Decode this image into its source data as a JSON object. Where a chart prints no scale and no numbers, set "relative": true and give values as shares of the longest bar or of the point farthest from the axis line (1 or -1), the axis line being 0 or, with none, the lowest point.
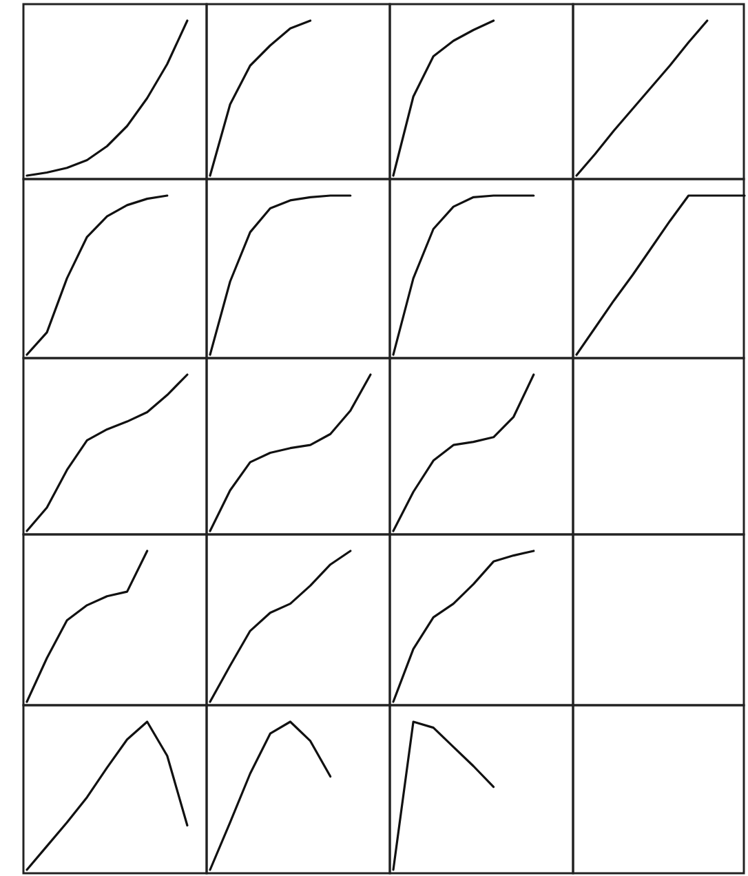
{
  "chart_data": [
    {
      "type": "line",
      "relative": true,
      "color": "#111111",
      "categories": [
        null,
        null,
        null,
        null,
        null,
        null,
        null,
        null,
        null
      ],
      "values": [
        0,
        0.02,
        0.05,
        0.1,
        0.19,
        0.32,
        0.5,
        0.72,
        1
      ]
    },
    {
      "type": "line",
      "relative": true,
      "color": "#111111",
      "categories": [
        null,
        null,
        null,
        null,
        null,
        null
      ],
      "values": [
        0,
        0.46,
        0.71,
        0.84,
        0.95,
        1
      ]
    },
    {
      "type": "line",
      "relative": true,
      "color": "#111111",
      "categories": [
        null,
        null,
        null,
        null,
        null,
        null
      ],
      "values": [
        0,
        0.51,
        0.77,
        0.87,
        0.94,
        1
      ]
    },
    {
      "type": "line",
      "relative": true,
      "color": "#111111",
      "categories": [
        null,
        null,
        null,
        null,
        null,
        null,
        null,
        null
      ],
      "values": [
        0,
        0.14,
        0.29,
        0.43,
        0.57,
        0.71,
        0.86,
        1
      ]
    },
    {
      "type": "line",
      "relative": true,
      "color": "#111111",
      "categories": [
        null,
        null,
        null,
        null,
        null,
        null,
        null,
        null
      ],
      "values": [
        0,
        0.14,
        0.48,
        0.74,
        0.87,
        0.94,
        0.98,
        1
      ]
    },
    {
      "type": "line",
      "relative": true,
      "color": "#111111",
      "categories": [
        null,
        null,
        null,
        null,
        null,
        null,
        null,
        null
      ],
      "values": [
        0,
        0.46,
        0.77,
        0.92,
        0.97,
        0.99,
        1,
        1
      ]
    },
    {
      "type": "line",
      "relative": true,
      "color": "#111111",
      "categories": [
        null,
        null,
        null,
        null,
        null,
        null,
        null,
        null
      ],
      "values": [
        0,
        0.48,
        0.79,
        0.93,
        0.99,
        1,
        1,
        1
      ]
    },
    {
      "type": "line",
      "relative": true,
      "color": "#111111",
      "categories": [
        null,
        null,
        null,
        null,
        null,
        null,
        null,
        null,
        null,
        null
      ],
      "values": [
        0,
        0.17,
        0.34,
        0.5,
        0.67,
        0.84,
        1,
        1,
        1,
        1
      ]
    },
    {
      "type": "line",
      "relative": true,
      "color": "#111111",
      "categories": [
        null,
        null,
        null,
        null,
        null,
        null,
        null,
        null,
        null
      ],
      "values": [
        0,
        0.15,
        0.39,
        0.58,
        0.65,
        0.7,
        0.76,
        0.87,
        1
      ]
    },
    {
      "type": "line",
      "relative": true,
      "color": "#111111",
      "categories": [
        null,
        null,
        null,
        null,
        null,
        null,
        null,
        null,
        null
      ],
      "values": [
        0,
        0.26,
        0.44,
        0.5,
        0.53,
        0.55,
        0.62,
        0.77,
        1
      ]
    },
    {
      "type": "line",
      "relative": true,
      "color": "#111111",
      "categories": [
        null,
        null,
        null,
        null,
        null,
        null,
        null,
        null
      ],
      "values": [
        0,
        0.25,
        0.45,
        0.55,
        0.57,
        0.6,
        0.73,
        1
      ]
    },
    {
      "type": "line",
      "relative": true,
      "color": "#111111",
      "categories": [
        null,
        null,
        null,
        null,
        null,
        null,
        null
      ],
      "values": [
        0,
        0.29,
        0.54,
        0.64,
        0.7,
        0.73,
        1
      ]
    },
    {
      "type": "line",
      "relative": true,
      "color": "#111111",
      "categories": [
        null,
        null,
        null,
        null,
        null,
        null,
        null,
        null
      ],
      "values": [
        0,
        0.24,
        0.47,
        0.59,
        0.65,
        0.77,
        0.91,
        1
      ]
    },
    {
      "type": "line",
      "relative": true,
      "color": "#111111",
      "categories": [
        null,
        null,
        null,
        null,
        null,
        null,
        null,
        null
      ],
      "values": [
        0,
        0.35,
        0.56,
        0.65,
        0.78,
        0.93,
        0.97,
        1
      ]
    },
    {
      "type": "line",
      "relative": true,
      "color": "#111111",
      "categories": [
        null,
        null,
        null,
        null,
        null,
        null,
        null,
        null,
        null
      ],
      "values": [
        0,
        0.16,
        0.32,
        0.49,
        0.69,
        0.88,
        1,
        0.77,
        0.3
      ]
    },
    {
      "type": "line",
      "relative": true,
      "color": "#111111",
      "categories": [
        null,
        null,
        null,
        null,
        null,
        null,
        null
      ],
      "values": [
        0,
        0.32,
        0.65,
        0.92,
        1,
        0.87,
        0.63
      ]
    },
    {
      "type": "line",
      "relative": true,
      "color": "#111111",
      "categories": [
        null,
        null,
        null,
        null,
        null,
        null
      ],
      "values": [
        0,
        1,
        0.96,
        0.83,
        0.7,
        0.56
      ]
    }
  ]
}
